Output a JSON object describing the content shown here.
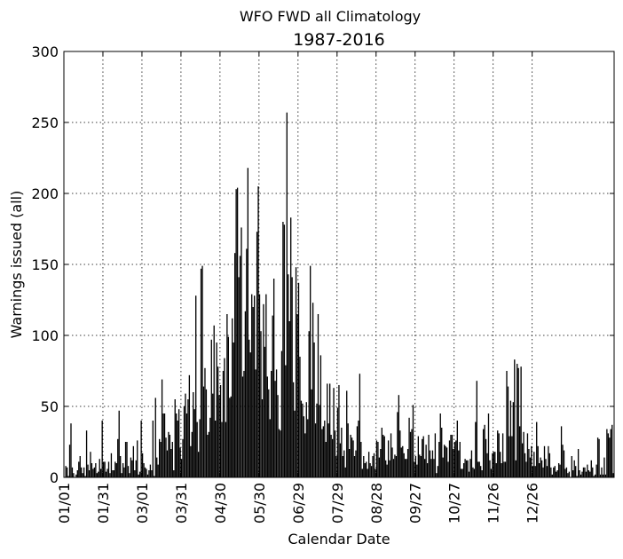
{
  "suptitle": "WFO FWD all Climatology",
  "chart_data": {
    "type": "bar",
    "title": "1987-2016",
    "xlabel": "Calendar Date",
    "ylabel": "Warnings issued (all)",
    "ylim": [
      0,
      300
    ],
    "yticks": [
      "0",
      "50",
      "100",
      "150",
      "200",
      "250",
      "300"
    ],
    "xticks": [
      "01/01",
      "01/31",
      "03/01",
      "03/31",
      "04/30",
      "05/30",
      "06/29",
      "07/29",
      "08/28",
      "09/27",
      "10/27",
      "11/26",
      "12/26"
    ],
    "grid": true,
    "bar_color": "#000000",
    "x_start": "01/01",
    "values": [
      0,
      8,
      7,
      1,
      23,
      38,
      7,
      3,
      0,
      2,
      5,
      11,
      15,
      7,
      3,
      7,
      1,
      33,
      9,
      5,
      18,
      10,
      6,
      7,
      10,
      3,
      4,
      13,
      6,
      40,
      11,
      11,
      4,
      6,
      11,
      3,
      17,
      5,
      5,
      11,
      10,
      27,
      47,
      15,
      3,
      10,
      7,
      25,
      25,
      8,
      3,
      14,
      12,
      22,
      5,
      12,
      26,
      2,
      4,
      40,
      17,
      10,
      7,
      6,
      2,
      5,
      9,
      5,
      40,
      1,
      56,
      14,
      9,
      27,
      25,
      69,
      45,
      45,
      28,
      19,
      32,
      30,
      20,
      25,
      5,
      55,
      45,
      40,
      48,
      21,
      13,
      27,
      50,
      59,
      45,
      55,
      72,
      22,
      32,
      60,
      48,
      128,
      39,
      18,
      41,
      147,
      149,
      64,
      77,
      62,
      30,
      32,
      42,
      97,
      59,
      107,
      40,
      95,
      78,
      58,
      65,
      39,
      75,
      84,
      39,
      115,
      99,
      56,
      57,
      112,
      95,
      158,
      203,
      204,
      141,
      156,
      176,
      71,
      75,
      117,
      161,
      218,
      97,
      88,
      129,
      120,
      128,
      76,
      173,
      205,
      129,
      103,
      55,
      122,
      92,
      129,
      71,
      62,
      41,
      75,
      114,
      140,
      68,
      76,
      58,
      34,
      33,
      89,
      180,
      178,
      79,
      257,
      143,
      110,
      183,
      141,
      67,
      47,
      148,
      115,
      137,
      85,
      54,
      52,
      43,
      31,
      53,
      41,
      103,
      149,
      62,
      123,
      95,
      38,
      52,
      115,
      51,
      86,
      34,
      36,
      40,
      25,
      66,
      38,
      66,
      30,
      27,
      63,
      33,
      15,
      49,
      65,
      24,
      35,
      15,
      19,
      7,
      61,
      38,
      20,
      30,
      28,
      26,
      15,
      19,
      36,
      40,
      73,
      25,
      6,
      15,
      10,
      11,
      6,
      18,
      10,
      8,
      15,
      17,
      6,
      26,
      25,
      14,
      20,
      35,
      30,
      29,
      12,
      9,
      26,
      12,
      31,
      21,
      13,
      16,
      15,
      46,
      58,
      33,
      21,
      22,
      17,
      13,
      13,
      20,
      42,
      32,
      34,
      51,
      11,
      15,
      9,
      29,
      16,
      15,
      27,
      29,
      13,
      23,
      10,
      30,
      19,
      13,
      19,
      13,
      31,
      3,
      8,
      25,
      45,
      35,
      14,
      23,
      22,
      21,
      11,
      26,
      30,
      30,
      20,
      25,
      26,
      40,
      19,
      25,
      6,
      6,
      10,
      13,
      12,
      12,
      4,
      13,
      19,
      7,
      6,
      39,
      68,
      11,
      11,
      8,
      5,
      34,
      37,
      27,
      17,
      45,
      12,
      6,
      17,
      18,
      18,
      10,
      33,
      31,
      18,
      10,
      31,
      11,
      11,
      75,
      64,
      29,
      54,
      29,
      53,
      83,
      12,
      80,
      77,
      36,
      78,
      24,
      32,
      17,
      11,
      31,
      20,
      14,
      22,
      8,
      18,
      8,
      39,
      22,
      10,
      14,
      12,
      7,
      22,
      13,
      8,
      22,
      17,
      7,
      2,
      7,
      8,
      4,
      5,
      10,
      9,
      36,
      23,
      19,
      6,
      7,
      3,
      4,
      0,
      15,
      5,
      12,
      8,
      1,
      20,
      5,
      2,
      4,
      7,
      7,
      4,
      9,
      5,
      4,
      12,
      7,
      1,
      2,
      9,
      28,
      27,
      2,
      7,
      2,
      14,
      2,
      34,
      31,
      28,
      34,
      37,
      3
    ]
  }
}
